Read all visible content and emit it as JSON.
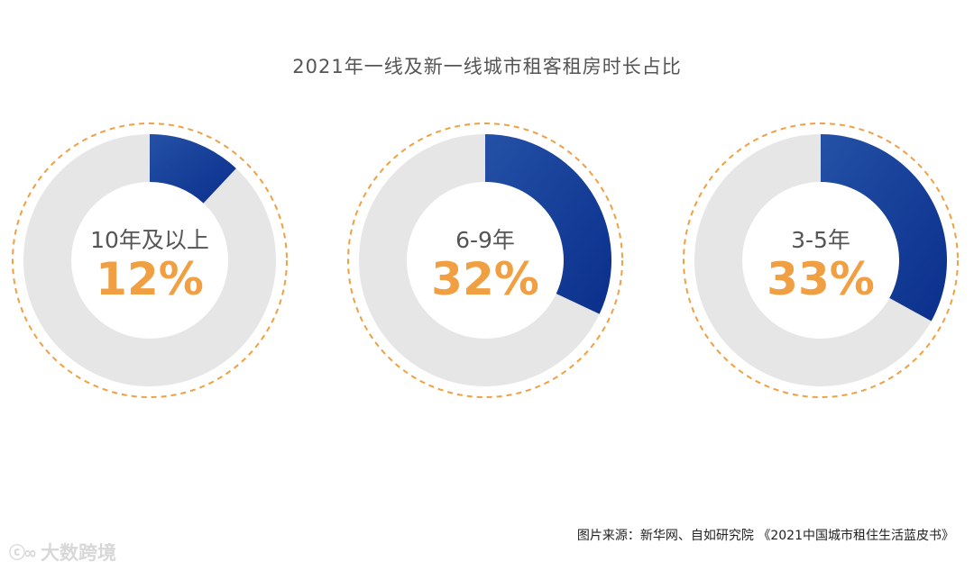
{
  "chart_data": {
    "type": "pie",
    "title": "2021年一线及新一线城市租客租房时长占比",
    "items": [
      {
        "label": "10年及以上",
        "value": 12,
        "display": "12%"
      },
      {
        "label": "6-9年",
        "value": 32,
        "display": "32%"
      },
      {
        "label": "3-5年",
        "value": 33,
        "display": "33%"
      }
    ],
    "max": 100
  },
  "source": "图片来源：新华网、自如研究院 《2021中国城市租住生活蓝皮书》",
  "watermark": {
    "logo": "ⓒ∞",
    "text": "大数跨境"
  },
  "colors": {
    "track": "#e6e6e6",
    "fill_start": "#2451a6",
    "fill_end": "#0a2f8c",
    "accent": "#f0a042",
    "label": "#555555"
  }
}
